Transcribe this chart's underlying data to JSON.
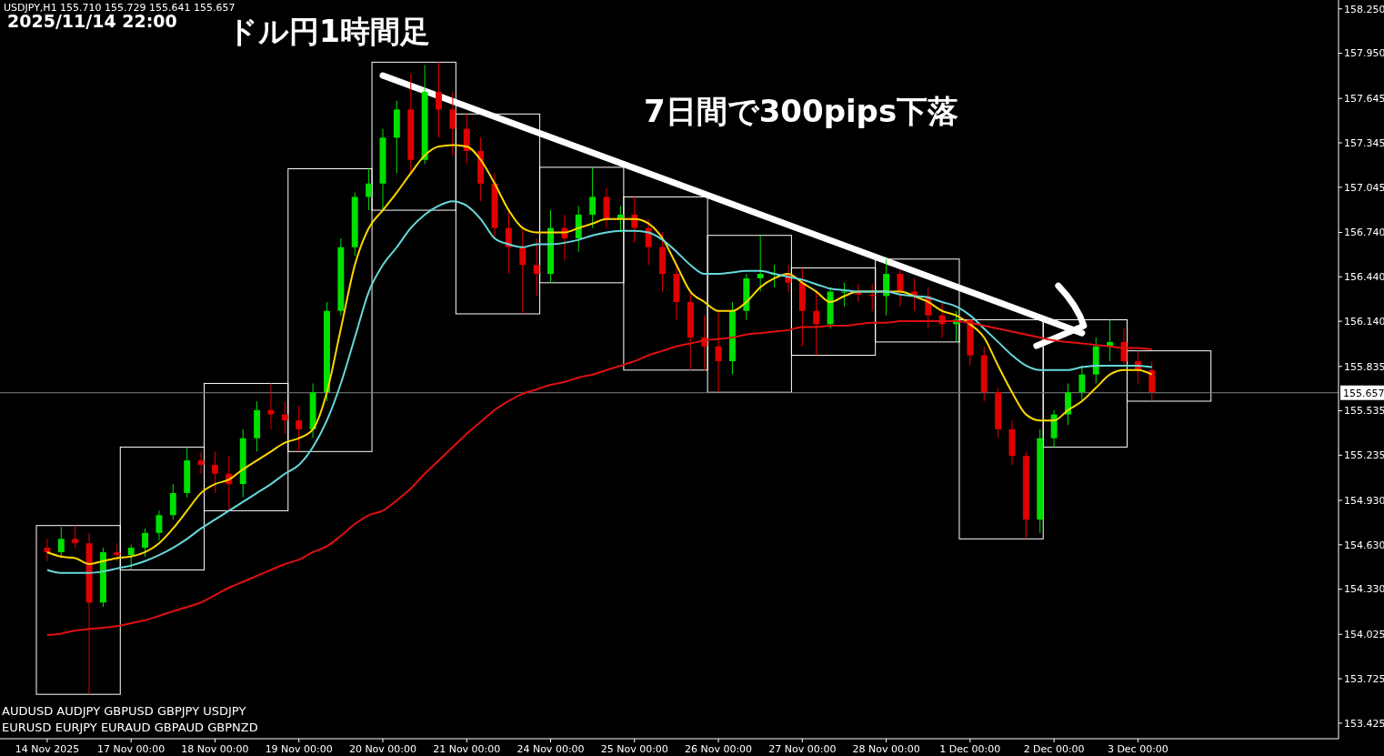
{
  "chart_data": {
    "type": "candlestick",
    "title": "ドル円1時間足",
    "annotations": [
      "USDJPY,H1 155.710 155.729 155.641 155.657",
      "2025/11/14 22:00",
      "7日間で300pips下落",
      "AUDUSD  AUDJPY  GBPUSD  GBPJPY  USDJPY",
      "EURUSD  EURJPY  EURAUD  GBPAUD  GBPNZD"
    ],
    "categories": [
      "14 Nov 2025",
      null,
      null,
      null,
      null,
      null,
      "17 Nov 00:00",
      null,
      null,
      null,
      null,
      null,
      "18 Nov 00:00",
      null,
      null,
      null,
      null,
      null,
      "19 Nov 00:00",
      null,
      null,
      null,
      null,
      null,
      "20 Nov 00:00",
      null,
      null,
      null,
      null,
      null,
      "21 Nov 00:00",
      null,
      null,
      null,
      null,
      null,
      "24 Nov 00:00",
      null,
      null,
      null,
      null,
      null,
      "25 Nov 00:00",
      null,
      null,
      null,
      null,
      null,
      "26 Nov 00:00",
      null,
      null,
      null,
      null,
      null,
      "27 Nov 00:00",
      null,
      null,
      null,
      null,
      null,
      "28 Nov 00:00",
      null,
      null,
      null,
      null,
      null,
      "1 Dec 00:00",
      null,
      null,
      null,
      null,
      null,
      "2 Dec 00:00",
      null,
      null,
      null,
      null,
      null,
      "3 Dec 00:00",
      null
    ],
    "ohlc": [
      [
        154.61,
        154.67,
        154.52,
        154.58
      ],
      [
        154.58,
        154.75,
        154.54,
        154.67
      ],
      [
        154.67,
        154.76,
        154.61,
        154.64
      ],
      [
        154.64,
        154.71,
        153.62,
        154.24
      ],
      [
        154.24,
        154.61,
        154.21,
        154.58
      ],
      [
        154.58,
        154.64,
        154.52,
        154.56
      ],
      [
        154.56,
        154.63,
        154.46,
        154.61
      ],
      [
        154.61,
        154.74,
        154.55,
        154.71
      ],
      [
        154.71,
        154.86,
        154.66,
        154.83
      ],
      [
        154.83,
        155.04,
        154.8,
        154.98
      ],
      [
        154.98,
        155.29,
        154.95,
        155.2
      ],
      [
        155.2,
        155.26,
        155.11,
        155.17
      ],
      [
        155.17,
        155.26,
        154.98,
        155.11
      ],
      [
        155.11,
        155.23,
        154.86,
        155.04
      ],
      [
        155.04,
        155.41,
        154.95,
        155.35
      ],
      [
        155.35,
        155.6,
        155.26,
        155.54
      ],
      [
        155.54,
        155.72,
        155.41,
        155.51
      ],
      [
        155.51,
        155.6,
        155.38,
        155.47
      ],
      [
        155.47,
        155.57,
        155.26,
        155.41
      ],
      [
        155.41,
        155.72,
        155.35,
        155.66
      ],
      [
        155.66,
        156.27,
        155.6,
        156.21
      ],
      [
        156.21,
        156.7,
        156.18,
        156.64
      ],
      [
        156.64,
        157.01,
        156.58,
        156.98
      ],
      [
        156.98,
        157.17,
        156.89,
        157.07
      ],
      [
        157.07,
        157.44,
        156.89,
        157.38
      ],
      [
        157.38,
        157.63,
        157.14,
        157.57
      ],
      [
        157.57,
        157.81,
        157.14,
        157.23
      ],
      [
        157.23,
        157.87,
        157.2,
        157.69
      ],
      [
        157.69,
        157.89,
        157.38,
        157.57
      ],
      [
        157.57,
        157.69,
        157.26,
        157.44
      ],
      [
        157.44,
        157.54,
        157.2,
        157.29
      ],
      [
        157.29,
        157.38,
        156.95,
        157.07
      ],
      [
        157.07,
        157.14,
        156.7,
        156.77
      ],
      [
        156.77,
        156.89,
        156.46,
        156.64
      ],
      [
        156.64,
        156.77,
        156.19,
        156.52
      ],
      [
        156.52,
        156.7,
        156.31,
        156.46
      ],
      [
        156.46,
        156.89,
        156.4,
        156.77
      ],
      [
        156.77,
        156.86,
        156.55,
        156.7
      ],
      [
        156.7,
        156.92,
        156.61,
        156.86
      ],
      [
        156.86,
        157.18,
        156.77,
        156.98
      ],
      [
        156.98,
        157.04,
        156.77,
        156.83
      ],
      [
        156.83,
        156.92,
        156.74,
        156.86
      ],
      [
        156.86,
        156.98,
        156.67,
        156.77
      ],
      [
        156.77,
        156.83,
        156.52,
        156.64
      ],
      [
        156.64,
        156.74,
        156.34,
        156.46
      ],
      [
        156.46,
        156.52,
        156.15,
        156.27
      ],
      [
        156.27,
        156.34,
        155.81,
        156.03
      ],
      [
        156.03,
        156.18,
        155.81,
        155.97
      ],
      [
        155.97,
        156.21,
        155.66,
        155.87
      ],
      [
        155.87,
        156.27,
        155.78,
        156.21
      ],
      [
        156.21,
        156.46,
        156.15,
        156.43
      ],
      [
        156.43,
        156.72,
        156.34,
        156.46
      ],
      [
        156.46,
        156.52,
        156.37,
        156.46
      ],
      [
        156.46,
        156.52,
        156.34,
        156.4
      ],
      [
        156.4,
        156.5,
        155.97,
        156.21
      ],
      [
        156.21,
        156.34,
        155.91,
        156.12
      ],
      [
        156.12,
        156.37,
        156.09,
        156.34
      ],
      [
        156.34,
        156.4,
        156.24,
        156.34
      ],
      [
        156.34,
        156.39,
        156.27,
        156.32
      ],
      [
        156.32,
        156.39,
        156.21,
        156.31
      ],
      [
        156.31,
        156.56,
        156.18,
        156.46
      ],
      [
        156.46,
        156.49,
        156.24,
        156.34
      ],
      [
        156.34,
        156.43,
        156.21,
        156.31
      ],
      [
        156.31,
        156.37,
        156.09,
        156.18
      ],
      [
        156.18,
        156.27,
        156.03,
        156.12
      ],
      [
        156.12,
        156.21,
        156.0,
        156.15
      ],
      [
        156.15,
        156.15,
        155.84,
        155.91
      ],
      [
        155.91,
        155.97,
        155.6,
        155.66
      ],
      [
        155.66,
        155.69,
        155.35,
        155.41
      ],
      [
        155.41,
        155.47,
        155.17,
        155.23
      ],
      [
        155.23,
        155.26,
        154.67,
        154.8
      ],
      [
        154.8,
        155.41,
        154.71,
        155.35
      ],
      [
        155.35,
        155.54,
        155.29,
        155.51
      ],
      [
        155.51,
        155.72,
        155.44,
        155.66
      ],
      [
        155.66,
        155.84,
        155.6,
        155.78
      ],
      [
        155.78,
        156.03,
        155.72,
        155.97
      ],
      [
        155.97,
        156.15,
        155.87,
        156.0
      ],
      [
        156.0,
        156.09,
        155.84,
        155.87
      ],
      [
        155.87,
        155.94,
        155.72,
        155.81
      ],
      [
        155.81,
        155.87,
        155.6,
        155.66
      ]
    ],
    "series": [
      {
        "type": "line",
        "color": "#ffd700",
        "values": [
          154.58,
          154.55,
          154.54,
          154.5,
          154.52,
          154.54,
          154.55,
          154.58,
          154.64,
          154.74,
          154.86,
          154.98,
          155.04,
          155.07,
          155.14,
          155.2,
          155.26,
          155.32,
          155.35,
          155.41,
          155.66,
          156.09,
          156.52,
          156.77,
          156.89,
          157.01,
          157.14,
          157.26,
          157.32,
          157.33,
          157.32,
          157.23,
          157.07,
          156.89,
          156.77,
          156.74,
          156.74,
          156.74,
          156.77,
          156.8,
          156.83,
          156.83,
          156.83,
          156.8,
          156.7,
          156.52,
          156.34,
          156.27,
          156.21,
          156.21,
          156.27,
          156.37,
          156.43,
          156.46,
          156.4,
          156.34,
          156.27,
          156.31,
          156.34,
          156.34,
          156.34,
          156.34,
          156.31,
          156.27,
          156.21,
          156.18,
          156.12,
          156.03,
          155.84,
          155.66,
          155.51,
          155.47,
          155.47,
          155.54,
          155.6,
          155.69,
          155.78,
          155.81,
          155.81,
          155.78
        ]
      },
      {
        "type": "line",
        "color": "#66d9d9",
        "values": [
          154.46,
          154.44,
          154.44,
          154.44,
          154.45,
          154.47,
          154.49,
          154.52,
          154.56,
          154.61,
          154.67,
          154.74,
          154.8,
          154.86,
          154.92,
          154.98,
          155.04,
          155.11,
          155.17,
          155.29,
          155.47,
          155.72,
          156.03,
          156.34,
          156.52,
          156.64,
          156.77,
          156.86,
          156.92,
          156.95,
          156.92,
          156.83,
          156.7,
          156.66,
          156.64,
          156.66,
          156.66,
          156.67,
          156.69,
          156.72,
          156.74,
          156.75,
          156.75,
          156.74,
          156.69,
          156.61,
          156.52,
          156.46,
          156.46,
          156.47,
          156.48,
          156.48,
          156.46,
          156.44,
          156.42,
          156.39,
          156.36,
          156.35,
          156.34,
          156.34,
          156.34,
          156.32,
          156.31,
          156.3,
          156.27,
          156.24,
          156.18,
          156.09,
          156.0,
          155.91,
          155.84,
          155.81,
          155.81,
          155.81,
          155.83,
          155.84,
          155.84,
          155.84,
          155.84,
          155.83
        ]
      },
      {
        "type": "line",
        "color": "#e01010",
        "values": [
          154.02,
          154.03,
          154.05,
          154.06,
          154.07,
          154.08,
          154.1,
          154.12,
          154.15,
          154.18,
          154.21,
          154.24,
          154.29,
          154.34,
          154.38,
          154.42,
          154.46,
          154.5,
          154.53,
          154.58,
          154.62,
          154.69,
          154.77,
          154.83,
          154.86,
          154.93,
          155.01,
          155.11,
          155.2,
          155.29,
          155.38,
          155.46,
          155.54,
          155.6,
          155.65,
          155.68,
          155.71,
          155.73,
          155.76,
          155.78,
          155.81,
          155.84,
          155.87,
          155.91,
          155.94,
          155.97,
          155.99,
          156.01,
          156.02,
          156.03,
          156.05,
          156.06,
          156.07,
          156.08,
          156.1,
          156.1,
          156.11,
          156.11,
          156.12,
          156.13,
          156.13,
          156.14,
          156.14,
          156.14,
          156.14,
          156.14,
          156.13,
          156.11,
          156.09,
          156.07,
          156.05,
          156.03,
          156.01,
          156.0,
          155.99,
          155.98,
          155.97,
          155.96,
          155.96,
          155.95
        ]
      }
    ],
    "ylim": [
      153.32,
      158.31
    ],
    "yticks": [
      {
        "value": 158.25,
        "label": "158.250"
      },
      {
        "value": 157.95,
        "label": "157.950"
      },
      157.645,
      157.345,
      157.045,
      {
        "value": 156.74,
        "label": "156.740"
      },
      {
        "value": 156.44,
        "label": "156.440"
      },
      {
        "value": 156.14,
        "label": "156.140"
      },
      155.835,
      155.535,
      155.235,
      {
        "value": 154.93,
        "label": "154.930"
      },
      {
        "value": 154.63,
        "label": "154.630"
      },
      {
        "value": 154.33,
        "label": "154.330"
      },
      154.025,
      153.725,
      153.425
    ],
    "ref_lines": [
      {
        "axis": "y",
        "value": 155.657,
        "label": "155.657",
        "color": "#808080"
      }
    ]
  }
}
